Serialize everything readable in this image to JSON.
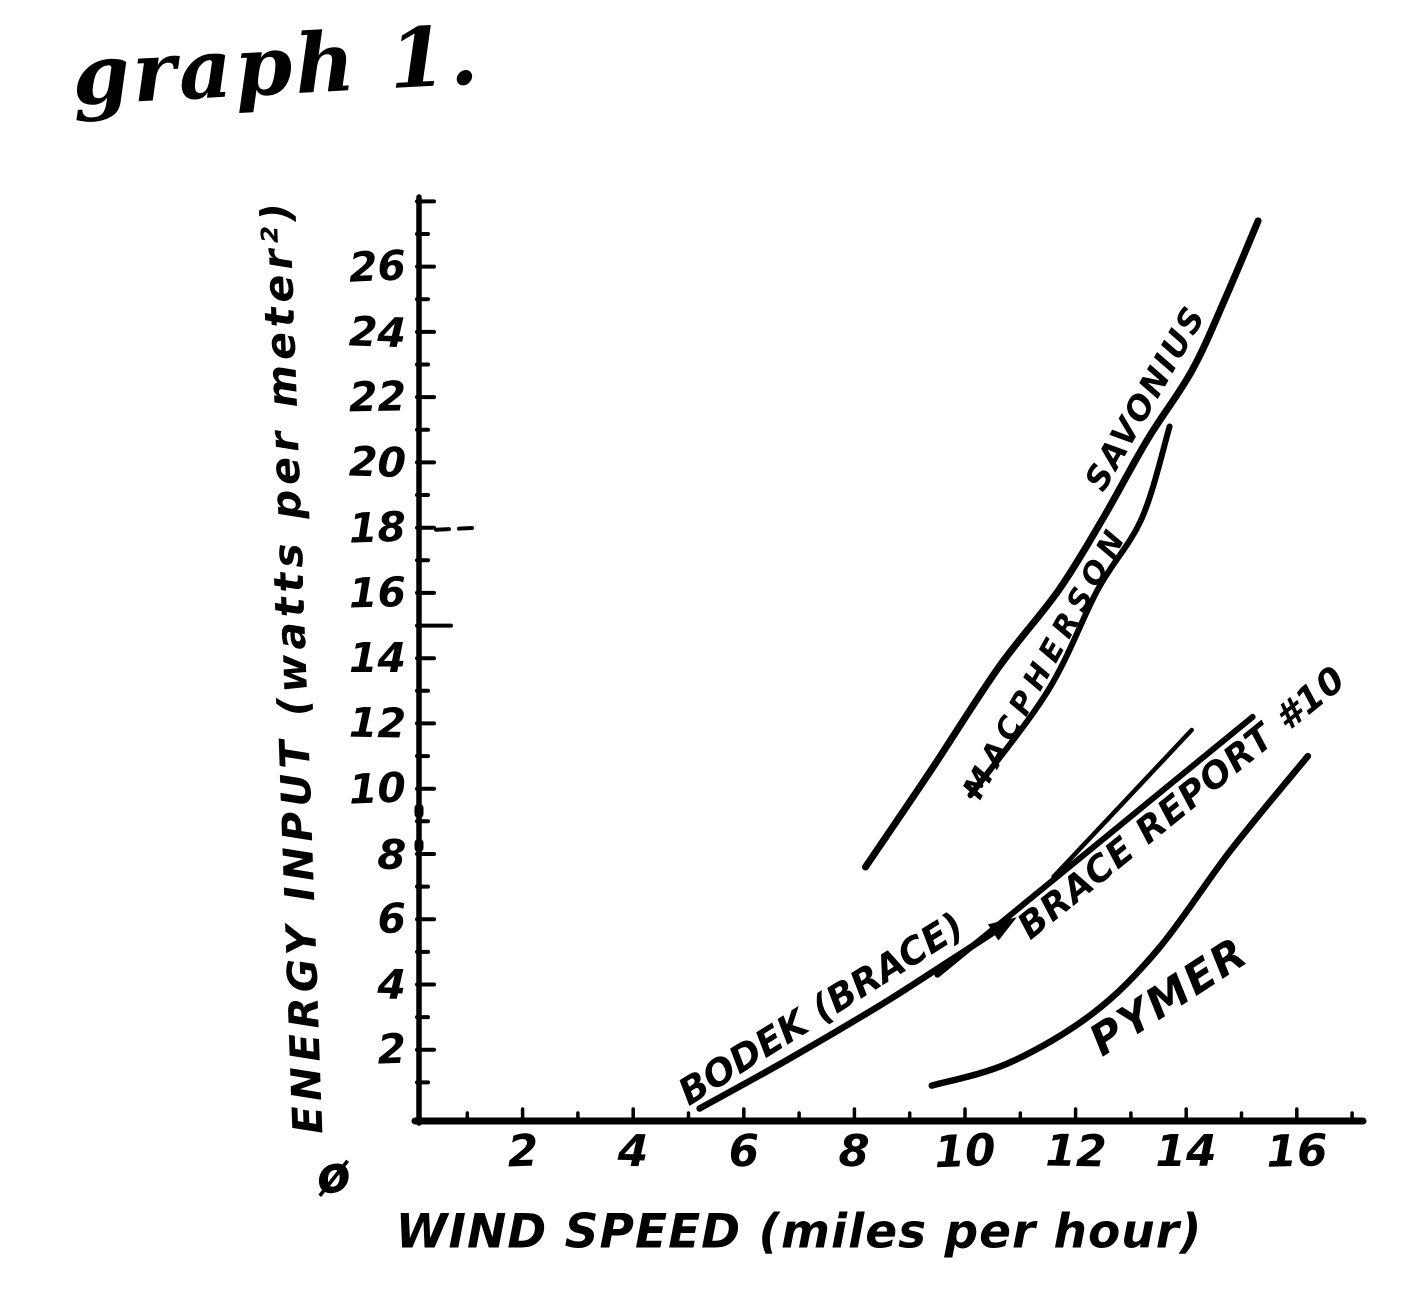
{
  "page": {
    "background": "#ffffff",
    "ink_color": "#000000"
  },
  "chart_data": {
    "type": "line",
    "title": "graph 1.",
    "xlabel": "WIND SPEED (miles per hour)",
    "ylabel": "ENERGY INPUT (watts per meter²)",
    "origin_label": "ø",
    "grid": false,
    "legend_position": "labels written along curves",
    "x_axis": {
      "range": [
        0,
        17.2
      ],
      "minor_tick_step": 1,
      "tick_values": [
        2,
        4,
        6,
        8,
        10,
        12,
        14,
        16
      ],
      "tick_labels": [
        "2",
        "4",
        "6",
        "8",
        "10",
        "12",
        "14",
        "16"
      ],
      "unit": "miles per hour"
    },
    "y_axis": {
      "range": [
        0,
        28.4
      ],
      "minor_tick_step": 1,
      "tick_values": [
        2,
        4,
        6,
        8,
        10,
        12,
        14,
        16,
        18,
        20,
        22,
        24,
        26
      ],
      "tick_labels": [
        "2",
        "4",
        "6",
        "8",
        "10",
        "12",
        "14",
        "16",
        "18",
        "20",
        "22",
        "24",
        "26"
      ],
      "dashed_mark_at": 18,
      "long_tick_at": 15,
      "unit": "watts per meter²"
    },
    "series": [
      {
        "id": "savonius",
        "name": "SAVONIUS",
        "segments": [
          [
            [
              8.2,
              7.6
            ],
            [
              9.4,
              10.6
            ],
            [
              10.6,
              13.7
            ],
            [
              11.7,
              16.1
            ],
            [
              12.5,
              18.3
            ],
            [
              13.3,
              20.7
            ],
            [
              14.1,
              22.8
            ],
            [
              14.7,
              25.0
            ],
            [
              15.3,
              27.4
            ]
          ]
        ]
      },
      {
        "id": "macpherson",
        "name": "MACPHERSON",
        "segments": [
          [
            [
              10.1,
              9.8
            ],
            [
              11.5,
              13.0
            ],
            [
              12.4,
              16.1
            ],
            [
              13.2,
              18.3
            ],
            [
              13.7,
              21.1
            ]
          ]
        ]
      },
      {
        "id": "brace",
        "name": "BRACE REPORT #10",
        "segments": [
          [
            [
              9.5,
              4.3
            ],
            [
              15.2,
              12.2
            ]
          ],
          [
            [
              11.6,
              7.3
            ],
            [
              14.1,
              11.8
            ]
          ]
        ]
      },
      {
        "id": "bodek",
        "name": "BODEK (BRACE)",
        "arrow_end": true,
        "segments": [
          [
            [
              5.2,
              0.2
            ],
            [
              6.8,
              1.7
            ],
            [
              8.5,
              3.4
            ],
            [
              9.7,
              4.7
            ],
            [
              10.7,
              5.8
            ]
          ]
        ]
      },
      {
        "id": "pymer",
        "name": "PYMER",
        "segments": [
          [
            [
              9.4,
              0.9
            ],
            [
              10.8,
              1.6
            ],
            [
              12.3,
              3.1
            ],
            [
              13.5,
              5.1
            ],
            [
              14.8,
              8.1
            ],
            [
              16.2,
              11.0
            ]
          ]
        ]
      }
    ]
  }
}
